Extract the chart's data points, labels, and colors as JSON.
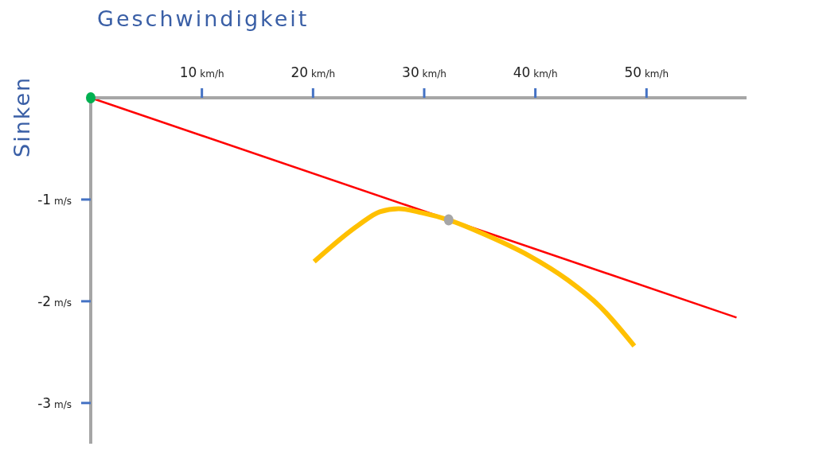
{
  "chart_data": {
    "type": "line",
    "xlabel": "Geschwindigkeit",
    "ylabel": "Sinken",
    "xlim": [
      0,
      59
    ],
    "ylim": [
      -3.4,
      0
    ],
    "xticks": [
      {
        "value": 10,
        "label": "10 km/h"
      },
      {
        "value": 20,
        "label": "20 km/h"
      },
      {
        "value": 30,
        "label": "30 km/h"
      },
      {
        "value": 40,
        "label": "40 km/h"
      },
      {
        "value": 50,
        "label": "50 km/h"
      }
    ],
    "yticks": [
      {
        "value": -1,
        "label": "-1 m/s"
      },
      {
        "value": -2,
        "label": "-2 m/s"
      },
      {
        "value": -3,
        "label": "-3 m/s"
      }
    ],
    "grid": false,
    "series": [
      {
        "color": "#ff0000",
        "marker": "none",
        "x": [
          0,
          58.1
        ],
        "values": [
          0,
          -2.16
        ]
      },
      {
        "color": "#ffc000",
        "marker": "none",
        "x": [
          20.1,
          24.1,
          26.0,
          27.7,
          29.8,
          32.2,
          35.8,
          39.4,
          42.9,
          45.8,
          48.9
        ],
        "values": [
          -1.61,
          -1.25,
          -1.12,
          -1.09,
          -1.13,
          -1.2,
          -1.36,
          -1.55,
          -1.79,
          -2.05,
          -2.44
        ]
      },
      {
        "type": "scatter",
        "color": "#00b050",
        "marker": "circle",
        "x": [
          0
        ],
        "values": [
          0
        ]
      },
      {
        "type": "scatter",
        "color": "#a6a6a6",
        "marker": "circle",
        "x": [
          32.2
        ],
        "values": [
          -1.2
        ]
      }
    ]
  }
}
